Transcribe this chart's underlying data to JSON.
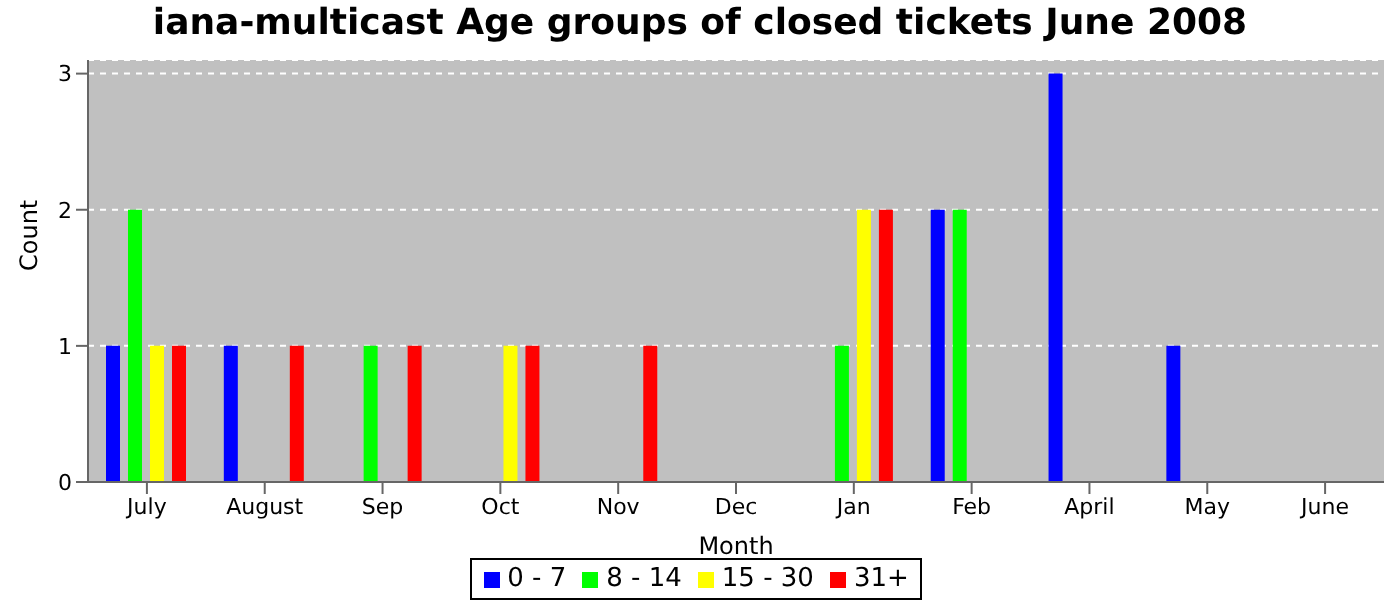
{
  "chart_data": {
    "type": "bar",
    "title": "iana-multicast Age groups of closed tickets June 2008",
    "xlabel": "Month",
    "ylabel": "Count",
    "categories": [
      "July",
      "August",
      "Sep",
      "Oct",
      "Nov",
      "Dec",
      "Jan",
      "Feb",
      "April",
      "May",
      "June"
    ],
    "series": [
      {
        "name": "0 - 7",
        "color": "#0000ff",
        "values": [
          1,
          1,
          0,
          0,
          0,
          0,
          0,
          2,
          3,
          1,
          0
        ]
      },
      {
        "name": "8 - 14",
        "color": "#00ff00",
        "values": [
          2,
          0,
          1,
          0,
          0,
          0,
          1,
          2,
          0,
          0,
          0
        ]
      },
      {
        "name": "15 - 30",
        "color": "#ffff00",
        "values": [
          1,
          0,
          0,
          1,
          0,
          0,
          2,
          0,
          0,
          0,
          0
        ]
      },
      {
        "name": "31+",
        "color": "#ff0000",
        "values": [
          1,
          1,
          1,
          1,
          1,
          0,
          2,
          0,
          0,
          0,
          0
        ]
      }
    ],
    "ylim": [
      0,
      3.1
    ],
    "yticks": [
      0,
      1,
      2,
      3
    ],
    "grid": "y",
    "legend": "bottom"
  }
}
